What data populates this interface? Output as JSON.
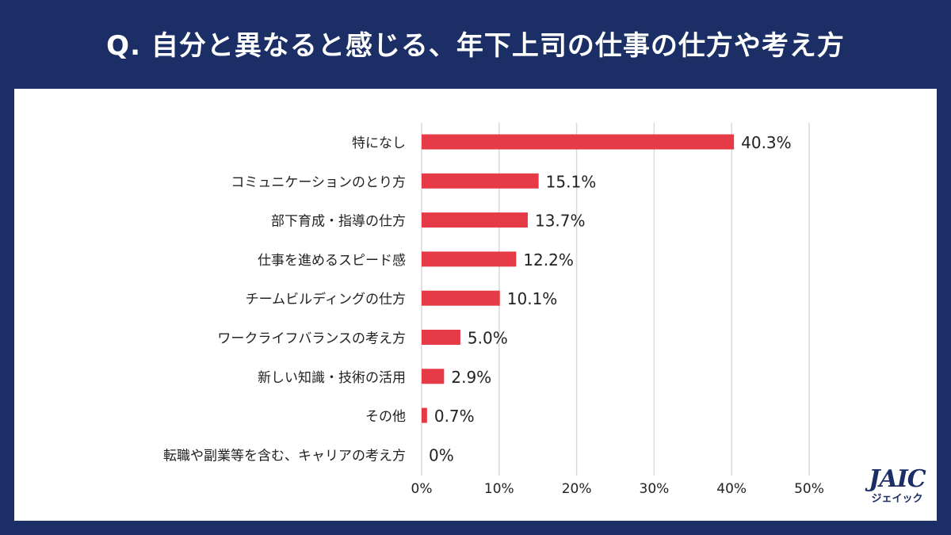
{
  "title": "Q. 自分と異なると感じる、年下上司の仕事の仕方や考え方",
  "colors": {
    "background": "#1b2f66",
    "bar": "#e63b47",
    "grid": "#d9d9d9"
  },
  "chart_data": {
    "type": "bar",
    "orientation": "horizontal",
    "title": "Q. 自分と異なると感じる、年下上司の仕事の仕方や考え方",
    "categories": [
      "特になし",
      "コミュニケーションのとり方",
      "部下育成・指導の仕方",
      "仕事を進めるスピード感",
      "チームビルディングの仕方",
      "ワークライフバランスの考え方",
      "新しい知識・技術の活用",
      "その他",
      "転職や副業等を含む、キャリアの考え方"
    ],
    "values": [
      40.3,
      15.1,
      13.7,
      12.2,
      10.1,
      5.0,
      2.9,
      0.7,
      0
    ],
    "value_labels": [
      "40.3%",
      "15.1%",
      "13.7%",
      "12.2%",
      "10.1%",
      "5.0%",
      "2.9%",
      "0.7%",
      "0%"
    ],
    "xlim": [
      0,
      50
    ],
    "x_ticks": [
      0,
      10,
      20,
      30,
      40,
      50
    ],
    "x_tick_labels": [
      "0%",
      "10%",
      "20%",
      "30%",
      "40%",
      "50%"
    ],
    "grid": true,
    "xlabel": "",
    "ylabel": ""
  },
  "logo": {
    "mark": "JAIC",
    "sub": "ジェイック"
  }
}
